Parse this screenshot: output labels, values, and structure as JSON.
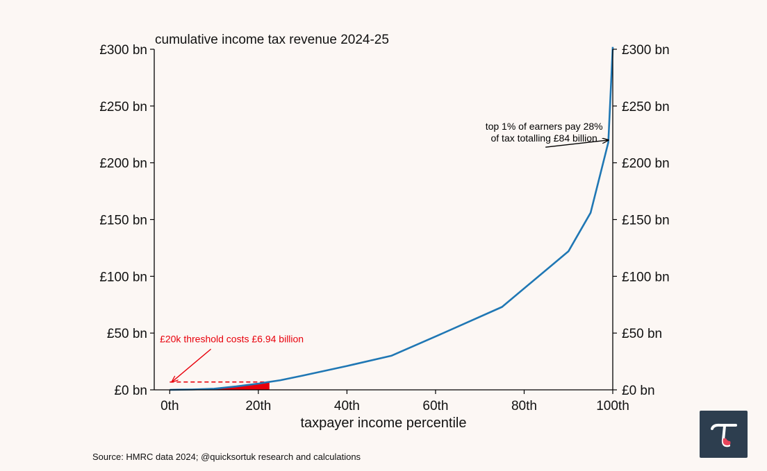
{
  "chart_data": {
    "type": "line",
    "title": "cumulative income tax revenue 2024-25",
    "xlabel": "taxpayer income percentile",
    "ylabel": "",
    "xlim": [
      -3.5,
      100
    ],
    "ylim": [
      0,
      300
    ],
    "x_ticks": [
      0,
      20,
      40,
      60,
      80,
      100
    ],
    "x_tick_labels": [
      "0th",
      "20th",
      "40th",
      "60th",
      "80th",
      "100th"
    ],
    "y_ticks": [
      0,
      50,
      100,
      150,
      200,
      250,
      300
    ],
    "y_tick_labels": [
      "£0 bn",
      "£50 bn",
      "£100 bn",
      "£150 bn",
      "£200 bn",
      "£250 bn",
      "£300 bn"
    ],
    "series": [
      {
        "name": "cumulative income tax revenue",
        "color": "#1f77b4",
        "x": [
          0,
          5,
          10,
          15,
          20,
          25,
          30,
          40,
          50,
          60,
          75,
          90,
          95,
          99,
          100
        ],
        "y": [
          0,
          0.3,
          1,
          3,
          5.5,
          8.5,
          12.5,
          21,
          30,
          47,
          73,
          122,
          156,
          218,
          302
        ]
      }
    ],
    "shaded_region": {
      "x_from": 0,
      "x_to": 22.5,
      "color": "#e8000b",
      "description": "£20k threshold"
    },
    "threshold_line": {
      "y": 6.94,
      "x_from": 0,
      "x_to": 22.5,
      "color": "#e8000b",
      "style": "dashed"
    },
    "annotations": [
      {
        "name": "threshold-annotation",
        "lines": [
          "£20k threshold costs £6.94 billion"
        ],
        "color": "#e8000b",
        "target_x": 0.5,
        "target_y": 7,
        "text_x": 14,
        "text_y": 42
      },
      {
        "name": "top-earners-annotation",
        "lines": [
          "top 1% of earners pay 28%",
          "of tax totalling £84 billion"
        ],
        "color": "#000000",
        "target_x": 99,
        "target_y": 220,
        "text_x": 84.5,
        "text_y": 229
      }
    ]
  },
  "source": "Source: HMRC data 2024; @quicksortuk research and calculations",
  "logo": {
    "glyph": "τ",
    "background": "#2d3e4f",
    "glyph_color": "#ffffff",
    "accent": "#e8445a"
  }
}
